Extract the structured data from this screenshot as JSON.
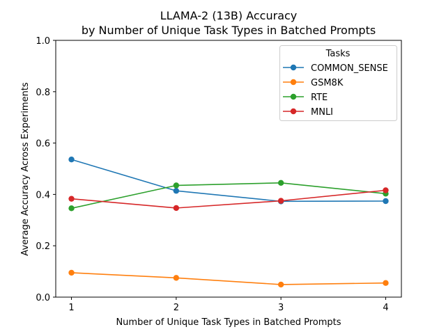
{
  "chart_data": {
    "type": "line",
    "title": "LLAMA-2 (13B) Accuracy",
    "subtitle": "by Number of Unique Task Types in Batched Prompts",
    "xlabel": "Number of Unique Task Types in Batched Prompts",
    "ylabel": "Average Accuracy Across Experiments",
    "x": [
      1,
      2,
      3,
      4
    ],
    "x_ticks": [
      "1",
      "2",
      "3",
      "4"
    ],
    "ylim": [
      0,
      1.0
    ],
    "y_ticks": [
      "0.0",
      "0.2",
      "0.4",
      "0.6",
      "0.8",
      "1.0"
    ],
    "grid": false,
    "legend": {
      "title": "Tasks",
      "placement": "top-right"
    },
    "series": [
      {
        "name": "COMMON_SENSE",
        "color": "#1f77b4",
        "values": [
          0.536,
          0.414,
          0.373,
          0.374
        ]
      },
      {
        "name": "GSM8K",
        "color": "#ff7f0e",
        "values": [
          0.095,
          0.075,
          0.049,
          0.055
        ]
      },
      {
        "name": "RTE",
        "color": "#2ca02c",
        "values": [
          0.346,
          0.435,
          0.445,
          0.403
        ]
      },
      {
        "name": "MNLI",
        "color": "#d62728",
        "values": [
          0.383,
          0.347,
          0.375,
          0.416
        ]
      }
    ]
  }
}
